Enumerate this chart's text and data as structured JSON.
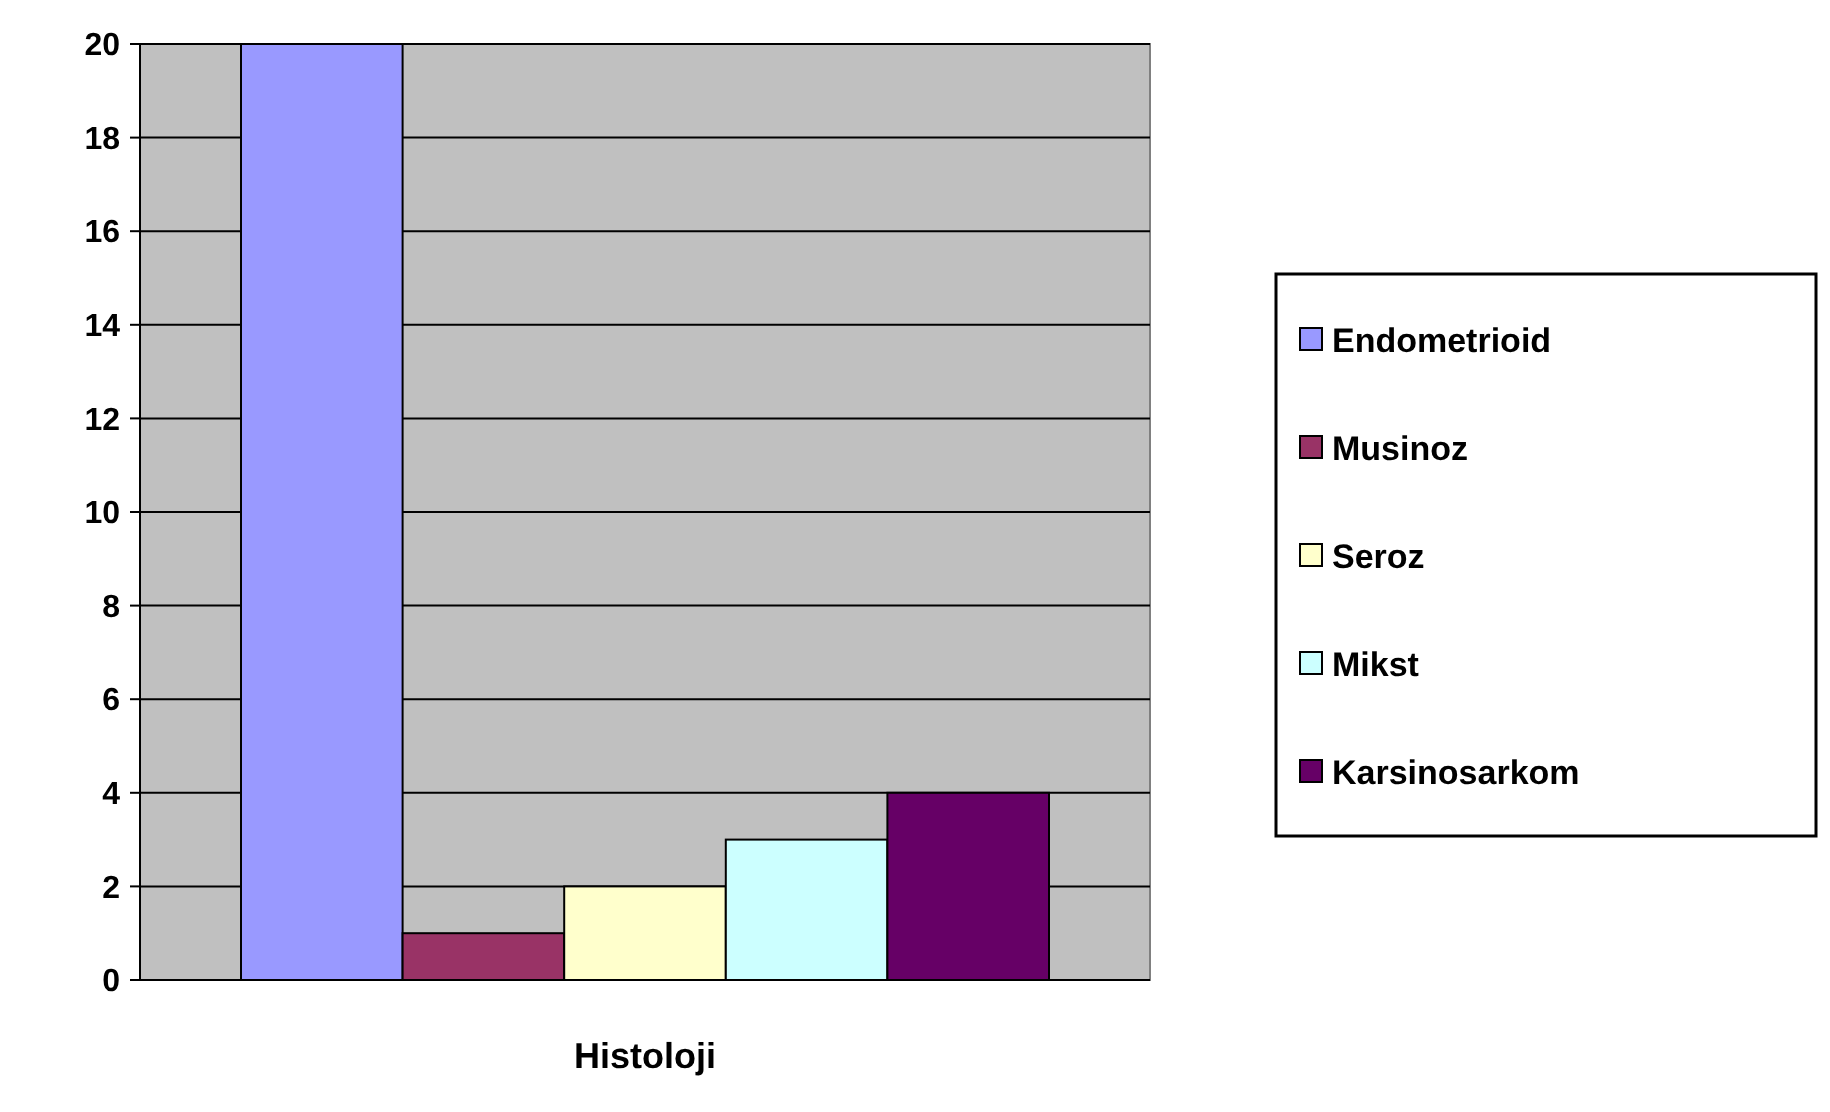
{
  "chart_data": {
    "type": "bar",
    "categories": [
      "Histoloji"
    ],
    "series": [
      {
        "name": "Endometrioid",
        "color": "#9999ff",
        "values": [
          20
        ]
      },
      {
        "name": "Musinoz",
        "color": "#993366",
        "values": [
          1
        ]
      },
      {
        "name": "Seroz",
        "color": "#ffffcc",
        "values": [
          2
        ]
      },
      {
        "name": "Mikst",
        "color": "#ccffff",
        "values": [
          3
        ]
      },
      {
        "name": "Karsinosarkom",
        "color": "#660066",
        "values": [
          4
        ]
      }
    ],
    "ylim": [
      0,
      20
    ],
    "yticks": [
      0,
      2,
      4,
      6,
      8,
      10,
      12,
      14,
      16,
      18,
      20
    ],
    "grid": "y",
    "legend": "right"
  }
}
